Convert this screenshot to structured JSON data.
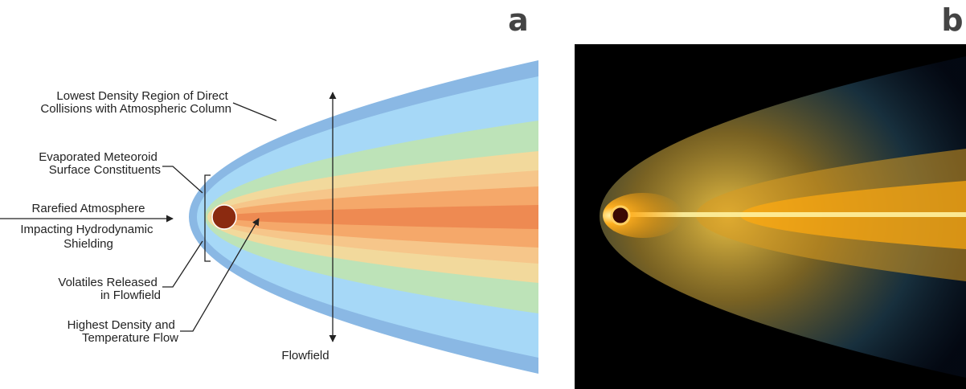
{
  "panels": [
    {
      "label": "a",
      "annotations": [
        {
          "lines": [
            "Lowest Density Region of Direct",
            "Collisions with Atmospheric Column"
          ]
        },
        {
          "lines": [
            "Evaporated Meteoroid",
            "Surface Constituents"
          ]
        },
        {
          "lines": [
            "Rarefied Atmosphere"
          ]
        },
        {
          "lines": [
            "Impacting Hydrodynamic",
            "Shielding"
          ]
        },
        {
          "lines": [
            "Volatiles Released",
            "in Flowfield"
          ]
        },
        {
          "lines": [
            "Highest Density and",
            "Temperature Flow"
          ]
        },
        {
          "lines": [
            "Flowfield"
          ]
        }
      ]
    },
    {
      "label": "b"
    }
  ]
}
